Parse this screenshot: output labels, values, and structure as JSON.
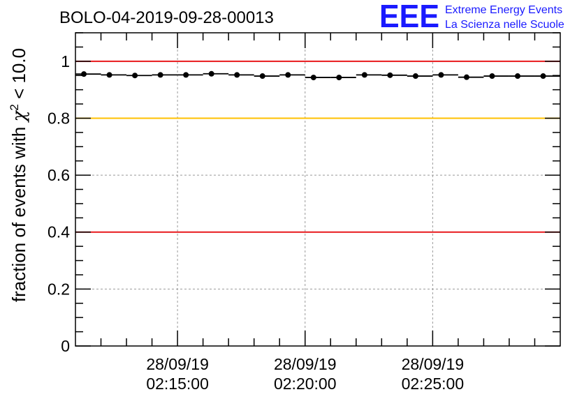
{
  "chart_data": {
    "type": "scatter",
    "title": "BOLO-04-2019-09-28-00013",
    "ylabel": {
      "prefix": "fraction of events with ",
      "symbol": "χ",
      "superscript": "2",
      "suffix": " < 10.0"
    },
    "xlabel": "",
    "ylim": [
      0,
      1.1
    ],
    "xlim": [
      0,
      19
    ],
    "y_ticks": [
      0,
      0.2,
      0.4,
      0.6,
      0.8,
      1
    ],
    "y_tick_labels": [
      "0",
      "0.2",
      "0.4",
      "0.6",
      "0.8",
      "1"
    ],
    "x_ticks": [
      {
        "pos": 4,
        "date": "28/09/19",
        "time": "02:15:00"
      },
      {
        "pos": 9,
        "date": "28/09/19",
        "time": "02:20:00"
      },
      {
        "pos": 14,
        "date": "28/09/19",
        "time": "02:25:00"
      }
    ],
    "grid": true,
    "reference_lines": [
      {
        "y": 1.0,
        "color": "#e8181c"
      },
      {
        "y": 0.8,
        "color": "#ffc000"
      },
      {
        "y": 0.4,
        "color": "#e8181c"
      }
    ],
    "series": [
      {
        "name": "fraction",
        "x": [
          0.33,
          1.33,
          2.33,
          3.33,
          4.33,
          5.33,
          6.33,
          7.33,
          8.33,
          9.33,
          10.33,
          11.33,
          12.33,
          13.33,
          14.33,
          15.33,
          16.33,
          17.33,
          18.33
        ],
        "values": [
          0.955,
          0.952,
          0.95,
          0.952,
          0.952,
          0.956,
          0.952,
          0.948,
          0.952,
          0.943,
          0.943,
          0.952,
          0.951,
          0.948,
          0.952,
          0.944,
          0.948,
          0.948,
          0.948
        ],
        "color": "#000000"
      }
    ]
  },
  "logo": {
    "mark": "EEE",
    "line1": "Extreme Energy Events",
    "line2": "La Scienza nelle Scuole",
    "color": "#1a1aff"
  }
}
